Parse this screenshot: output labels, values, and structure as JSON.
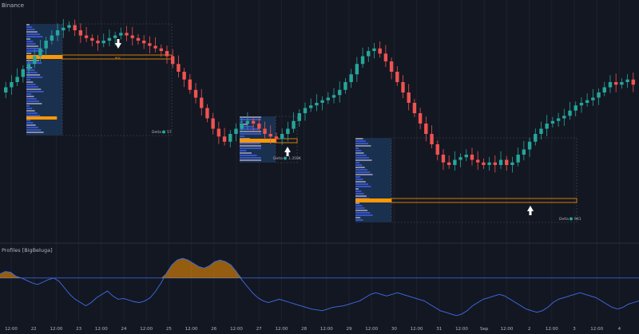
{
  "header": {
    "exchange": "Binance"
  },
  "indicator": {
    "title": "Profiles [BigBeluga]"
  },
  "colors": {
    "background": "#131722",
    "bull": "#26a69a",
    "bear": "#ef5350",
    "poc": "#ff9800",
    "profile_box": "#1e3a5f",
    "profile_bar": "#3d5bd9",
    "profile_bar_gray": "#9a9aae",
    "oscillator": "#3d6ee8",
    "oscillator_fill": "#ff9800",
    "grid": "#1e222d",
    "text": "#b2b5be"
  },
  "chart_data": [
    {
      "type": "candlestick",
      "x_tick_labels": [
        "12:00",
        "22",
        "12:00",
        "23",
        "12:00",
        "24",
        "12:00",
        "25",
        "12:00",
        "26",
        "12:00",
        "27",
        "12:00",
        "28",
        "12:00",
        "29",
        "12:00",
        "30",
        "12:00",
        "31",
        "12:00",
        "Sep",
        "12:00",
        "2",
        "12:00",
        "3",
        "12:00",
        "4"
      ],
      "close_series": [
        52,
        54,
        56,
        58,
        61,
        63,
        66,
        69,
        72,
        74,
        76,
        77,
        78,
        76,
        74,
        73,
        72,
        71,
        72,
        73,
        74,
        75,
        74,
        73,
        72,
        71,
        70,
        69,
        68,
        66,
        63,
        60,
        57,
        53,
        50,
        46,
        42,
        38,
        35,
        33,
        36,
        38,
        40,
        41,
        40,
        38,
        36,
        35,
        34,
        36,
        38,
        41,
        44,
        46,
        47,
        48,
        49,
        50,
        51,
        53,
        56,
        59,
        63,
        66,
        68,
        69,
        67,
        64,
        60,
        56,
        52,
        48,
        44,
        40,
        36,
        32,
        28,
        25,
        24,
        26,
        27,
        28,
        26,
        25,
        24,
        25,
        24,
        26,
        24,
        25,
        28,
        30,
        33,
        36,
        38,
        40,
        41,
        42,
        43,
        45,
        47,
        48,
        49,
        50,
        52,
        54,
        56,
        55,
        56,
        57,
        55
      ],
      "annotations": [
        {
          "type": "delta-label",
          "text": "Delta",
          "value": "57"
        },
        {
          "type": "delta-label",
          "text": "Delta",
          "value": "1.359K"
        },
        {
          "type": "delta-label",
          "text": "Delta",
          "value": "961"
        },
        {
          "type": "poc-label",
          "text": "POC"
        }
      ],
      "volume_profiles": [
        {
          "poc_level": "high",
          "arrow": "down"
        },
        {
          "poc_level": "mid",
          "arrow": "up"
        },
        {
          "poc_level": "low",
          "arrow": "up"
        }
      ]
    },
    {
      "type": "area",
      "title": "Profiles [BigBeluga]",
      "values": [
        55,
        58,
        57,
        52,
        50,
        47,
        44,
        42,
        45,
        48,
        50,
        46,
        38,
        30,
        24,
        20,
        16,
        20,
        26,
        30,
        34,
        28,
        24,
        25,
        23,
        21,
        20,
        22,
        26,
        34,
        44,
        56,
        66,
        72,
        74,
        72,
        68,
        64,
        62,
        65,
        70,
        72,
        70,
        66,
        58,
        48,
        40,
        32,
        26,
        22,
        20,
        22,
        24,
        22,
        20,
        18,
        16,
        14,
        12,
        11,
        10,
        12,
        14,
        15,
        16,
        18,
        20,
        22,
        26,
        30,
        32,
        30,
        28,
        30,
        32,
        30,
        28,
        26,
        24,
        22,
        18,
        14,
        10,
        8,
        6,
        4,
        6,
        10,
        16,
        20,
        24,
        26,
        28,
        30,
        28,
        24,
        20,
        16,
        12,
        10,
        8,
        10,
        14,
        20,
        24,
        26,
        28,
        30,
        32,
        30,
        28,
        26,
        22,
        18,
        14,
        12,
        14,
        18,
        20,
        22
      ],
      "baseline": 50
    }
  ]
}
